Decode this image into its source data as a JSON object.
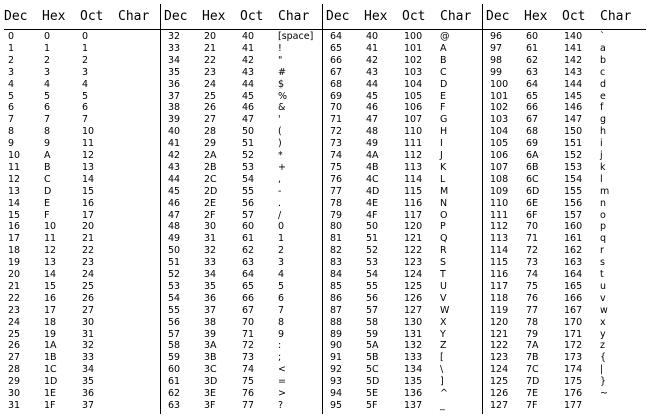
{
  "headers": [
    "Dec",
    "Hex",
    "Oct",
    "Char"
  ],
  "groups": [
    {
      "rows": [
        [
          "0",
          "0",
          "0",
          ""
        ],
        [
          "1",
          "1",
          "1",
          ""
        ],
        [
          "2",
          "2",
          "2",
          ""
        ],
        [
          "3",
          "3",
          "3",
          ""
        ],
        [
          "4",
          "4",
          "4",
          ""
        ],
        [
          "5",
          "5",
          "5",
          ""
        ],
        [
          "6",
          "6",
          "6",
          ""
        ],
        [
          "7",
          "7",
          "7",
          ""
        ],
        [
          "8",
          "8",
          "10",
          ""
        ],
        [
          "9",
          "9",
          "11",
          ""
        ],
        [
          "10",
          "A",
          "12",
          ""
        ],
        [
          "11",
          "B",
          "13",
          ""
        ],
        [
          "12",
          "C",
          "14",
          ""
        ],
        [
          "13",
          "D",
          "15",
          ""
        ],
        [
          "14",
          "E",
          "16",
          ""
        ],
        [
          "15",
          "F",
          "17",
          ""
        ],
        [
          "16",
          "10",
          "20",
          ""
        ],
        [
          "17",
          "11",
          "21",
          ""
        ],
        [
          "18",
          "12",
          "22",
          ""
        ],
        [
          "19",
          "13",
          "23",
          ""
        ],
        [
          "20",
          "14",
          "24",
          ""
        ],
        [
          "21",
          "15",
          "25",
          ""
        ],
        [
          "22",
          "16",
          "26",
          ""
        ],
        [
          "23",
          "17",
          "27",
          ""
        ],
        [
          "24",
          "18",
          "30",
          ""
        ],
        [
          "25",
          "19",
          "31",
          ""
        ],
        [
          "26",
          "1A",
          "32",
          ""
        ],
        [
          "27",
          "1B",
          "33",
          ""
        ],
        [
          "28",
          "1C",
          "34",
          ""
        ],
        [
          "29",
          "1D",
          "35",
          ""
        ],
        [
          "30",
          "1E",
          "36",
          ""
        ],
        [
          "31",
          "1F",
          "37",
          ""
        ]
      ]
    },
    {
      "rows": [
        [
          "32",
          "20",
          "40",
          "[space]"
        ],
        [
          "33",
          "21",
          "41",
          "!"
        ],
        [
          "34",
          "22",
          "42",
          "\""
        ],
        [
          "35",
          "23",
          "43",
          "#"
        ],
        [
          "36",
          "24",
          "44",
          "$"
        ],
        [
          "37",
          "25",
          "45",
          "%"
        ],
        [
          "38",
          "26",
          "46",
          "&"
        ],
        [
          "39",
          "27",
          "47",
          "'"
        ],
        [
          "40",
          "28",
          "50",
          "("
        ],
        [
          "41",
          "29",
          "51",
          ")"
        ],
        [
          "42",
          "2A",
          "52",
          "*"
        ],
        [
          "43",
          "2B",
          "53",
          "+"
        ],
        [
          "44",
          "2C",
          "54",
          ","
        ],
        [
          "45",
          "2D",
          "55",
          "-"
        ],
        [
          "46",
          "2E",
          "56",
          "."
        ],
        [
          "47",
          "2F",
          "57",
          "/"
        ],
        [
          "48",
          "30",
          "60",
          "0"
        ],
        [
          "49",
          "31",
          "61",
          "1"
        ],
        [
          "50",
          "32",
          "62",
          "2"
        ],
        [
          "51",
          "33",
          "63",
          "3"
        ],
        [
          "52",
          "34",
          "64",
          "4"
        ],
        [
          "53",
          "35",
          "65",
          "5"
        ],
        [
          "54",
          "36",
          "66",
          "6"
        ],
        [
          "55",
          "37",
          "67",
          "7"
        ],
        [
          "56",
          "38",
          "70",
          "8"
        ],
        [
          "57",
          "39",
          "71",
          "9"
        ],
        [
          "58",
          "3A",
          "72",
          ":"
        ],
        [
          "59",
          "3B",
          "73",
          ";"
        ],
        [
          "60",
          "3C",
          "74",
          "<"
        ],
        [
          "61",
          "3D",
          "75",
          "="
        ],
        [
          "62",
          "3E",
          "76",
          ">"
        ],
        [
          "63",
          "3F",
          "77",
          "?"
        ]
      ]
    },
    {
      "rows": [
        [
          "64",
          "40",
          "100",
          "@"
        ],
        [
          "65",
          "41",
          "101",
          "A"
        ],
        [
          "66",
          "42",
          "102",
          "B"
        ],
        [
          "67",
          "43",
          "103",
          "C"
        ],
        [
          "68",
          "44",
          "104",
          "D"
        ],
        [
          "69",
          "45",
          "105",
          "E"
        ],
        [
          "70",
          "46",
          "106",
          "F"
        ],
        [
          "71",
          "47",
          "107",
          "G"
        ],
        [
          "72",
          "48",
          "110",
          "H"
        ],
        [
          "73",
          "49",
          "111",
          "I"
        ],
        [
          "74",
          "4A",
          "112",
          "J"
        ],
        [
          "75",
          "4B",
          "113",
          "K"
        ],
        [
          "76",
          "4C",
          "114",
          "L"
        ],
        [
          "77",
          "4D",
          "115",
          "M"
        ],
        [
          "78",
          "4E",
          "116",
          "N"
        ],
        [
          "79",
          "4F",
          "117",
          "O"
        ],
        [
          "80",
          "50",
          "120",
          "P"
        ],
        [
          "81",
          "51",
          "121",
          "Q"
        ],
        [
          "82",
          "52",
          "122",
          "R"
        ],
        [
          "83",
          "53",
          "123",
          "S"
        ],
        [
          "84",
          "54",
          "124",
          "T"
        ],
        [
          "85",
          "55",
          "125",
          "U"
        ],
        [
          "86",
          "56",
          "126",
          "V"
        ],
        [
          "87",
          "57",
          "127",
          "W"
        ],
        [
          "88",
          "58",
          "130",
          "X"
        ],
        [
          "89",
          "59",
          "131",
          "Y"
        ],
        [
          "90",
          "5A",
          "132",
          "Z"
        ],
        [
          "91",
          "5B",
          "133",
          "["
        ],
        [
          "92",
          "5C",
          "134",
          "\\"
        ],
        [
          "93",
          "5D",
          "135",
          "]"
        ],
        [
          "94",
          "5E",
          "136",
          "^"
        ],
        [
          "95",
          "5F",
          "137",
          "_"
        ]
      ]
    },
    {
      "rows": [
        [
          "96",
          "60",
          "140",
          "`"
        ],
        [
          "97",
          "61",
          "141",
          "a"
        ],
        [
          "98",
          "62",
          "142",
          "b"
        ],
        [
          "99",
          "63",
          "143",
          "c"
        ],
        [
          "100",
          "64",
          "144",
          "d"
        ],
        [
          "101",
          "65",
          "145",
          "e"
        ],
        [
          "102",
          "66",
          "146",
          "f"
        ],
        [
          "103",
          "67",
          "147",
          "g"
        ],
        [
          "104",
          "68",
          "150",
          "h"
        ],
        [
          "105",
          "69",
          "151",
          "i"
        ],
        [
          "106",
          "6A",
          "152",
          "j"
        ],
        [
          "107",
          "6B",
          "153",
          "k"
        ],
        [
          "108",
          "6C",
          "154",
          "l"
        ],
        [
          "109",
          "6D",
          "155",
          "m"
        ],
        [
          "110",
          "6E",
          "156",
          "n"
        ],
        [
          "111",
          "6F",
          "157",
          "o"
        ],
        [
          "112",
          "70",
          "160",
          "p"
        ],
        [
          "113",
          "71",
          "161",
          "q"
        ],
        [
          "114",
          "72",
          "162",
          "r"
        ],
        [
          "115",
          "73",
          "163",
          "s"
        ],
        [
          "116",
          "74",
          "164",
          "t"
        ],
        [
          "117",
          "75",
          "165",
          "u"
        ],
        [
          "118",
          "76",
          "166",
          "v"
        ],
        [
          "119",
          "77",
          "167",
          "w"
        ],
        [
          "120",
          "78",
          "170",
          "x"
        ],
        [
          "121",
          "79",
          "171",
          "y"
        ],
        [
          "122",
          "7A",
          "172",
          "z"
        ],
        [
          "123",
          "7B",
          "173",
          "{"
        ],
        [
          "124",
          "7C",
          "174",
          "|"
        ],
        [
          "125",
          "7D",
          "175",
          "}"
        ],
        [
          "126",
          "7E",
          "176",
          "~"
        ],
        [
          "127",
          "7F",
          "177",
          ""
        ]
      ]
    }
  ]
}
